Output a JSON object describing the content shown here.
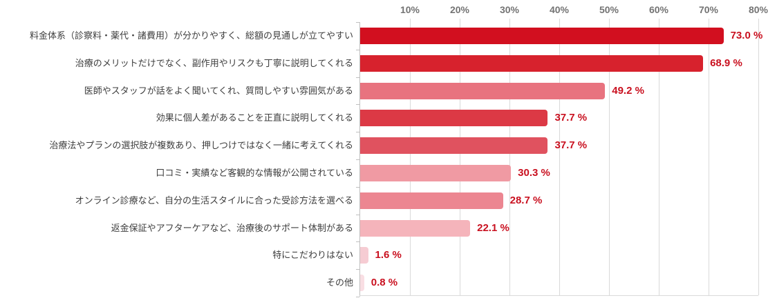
{
  "chart_data": {
    "type": "bar",
    "orientation": "horizontal",
    "title": "",
    "xlabel": "",
    "ylabel": "",
    "xlim": [
      0,
      80
    ],
    "grid": true,
    "x_ticks": [
      {
        "value": 10,
        "label": "10%"
      },
      {
        "value": 20,
        "label": "20%"
      },
      {
        "value": 30,
        "label": "30%"
      },
      {
        "value": 40,
        "label": "40%"
      },
      {
        "value": 50,
        "label": "50%"
      },
      {
        "value": 60,
        "label": "60%"
      },
      {
        "value": 70,
        "label": "70%"
      },
      {
        "value": 80,
        "label": "80%"
      }
    ],
    "categories": [
      "料金体系（診察料・薬代・諸費用）が分かりやすく、総額の見通しが立てやすい",
      "治療のメリットだけでなく、副作用やリスクも丁寧に説明してくれる",
      "医師やスタッフが話をよく聞いてくれ、質問しやすい雰囲気がある",
      "効果に個人差があることを正直に説明してくれる",
      "治療法やプランの選択肢が複数あり、押しつけではなく一緒に考えてくれる",
      "口コミ・実績など客観的な情報が公開されている",
      "オンライン診療など、自分の生活スタイルに合った受診方法を選べる",
      "返金保証やアフターケアなど、治療後のサポート体制がある",
      "特にこだわりはない",
      "その他"
    ],
    "values": [
      73.0,
      68.9,
      49.2,
      37.7,
      37.7,
      30.3,
      28.7,
      22.1,
      1.6,
      0.8
    ],
    "value_labels": [
      "73.0 %",
      "68.9 %",
      "49.2 %",
      "37.7 %",
      "37.7 %",
      "30.3 %",
      "28.7 %",
      "22.1 %",
      "1.6 %",
      "0.8 %"
    ],
    "bar_colors": [
      "#d20f1f",
      "#d7222d",
      "#e8737f",
      "#dc3945",
      "#e0525f",
      "#f09aa3",
      "#ec8691",
      "#f5b4bb",
      "#f6ccd3",
      "#f9dee3"
    ],
    "legend": null
  },
  "colors": {
    "value_label": "#c9101f",
    "category_label": "#3d3d3d",
    "axis_tick_label": "#737373",
    "gridline": "#d9d9d9",
    "axis_line": "#bfbfbf",
    "background": "#ffffff"
  }
}
